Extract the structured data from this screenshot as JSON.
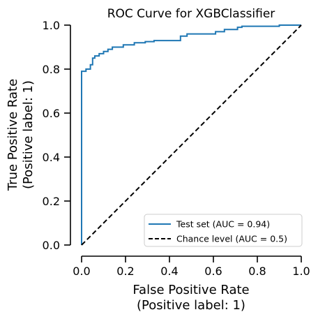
{
  "chart_data": {
    "type": "line",
    "title": "ROC Curve for XGBClassifier",
    "xlabel_line1": "False Positive Rate",
    "xlabel_line2": "(Positive label: 1)",
    "ylabel_line1": "True Positive Rate",
    "ylabel_line2": "(Positive label: 1)",
    "xlim": [
      0,
      1
    ],
    "ylim": [
      0,
      1
    ],
    "x_ticks": [
      "0.0",
      "0.2",
      "0.4",
      "0.6",
      "0.8",
      "1.0"
    ],
    "y_ticks": [
      "0.0",
      "0.2",
      "0.4",
      "0.6",
      "0.8",
      "1.0"
    ],
    "grid": false,
    "legend_position": "bottom-right",
    "series": [
      {
        "name": "Test set (AUC = 0.94)",
        "color": "#1f77b4",
        "style": "solid",
        "points": [
          [
            0.0,
            0.0
          ],
          [
            0.0,
            0.79
          ],
          [
            0.02,
            0.79
          ],
          [
            0.02,
            0.8
          ],
          [
            0.04,
            0.8
          ],
          [
            0.04,
            0.82
          ],
          [
            0.05,
            0.82
          ],
          [
            0.05,
            0.85
          ],
          [
            0.06,
            0.85
          ],
          [
            0.06,
            0.86
          ],
          [
            0.08,
            0.86
          ],
          [
            0.08,
            0.87
          ],
          [
            0.1,
            0.87
          ],
          [
            0.1,
            0.88
          ],
          [
            0.12,
            0.88
          ],
          [
            0.12,
            0.89
          ],
          [
            0.14,
            0.89
          ],
          [
            0.14,
            0.9
          ],
          [
            0.19,
            0.9
          ],
          [
            0.19,
            0.91
          ],
          [
            0.24,
            0.91
          ],
          [
            0.24,
            0.92
          ],
          [
            0.29,
            0.92
          ],
          [
            0.29,
            0.925
          ],
          [
            0.33,
            0.925
          ],
          [
            0.33,
            0.93
          ],
          [
            0.45,
            0.93
          ],
          [
            0.45,
            0.95
          ],
          [
            0.48,
            0.95
          ],
          [
            0.48,
            0.96
          ],
          [
            0.61,
            0.96
          ],
          [
            0.61,
            0.97
          ],
          [
            0.65,
            0.97
          ],
          [
            0.65,
            0.98
          ],
          [
            0.71,
            0.98
          ],
          [
            0.71,
            0.99
          ],
          [
            0.73,
            0.99
          ],
          [
            0.73,
            0.995
          ],
          [
            0.9,
            0.995
          ],
          [
            0.9,
            1.0
          ],
          [
            1.0,
            1.0
          ]
        ]
      },
      {
        "name": "Chance level (AUC = 0.5)",
        "color": "#000000",
        "style": "dashed",
        "points": [
          [
            0,
            0
          ],
          [
            1,
            1
          ]
        ]
      }
    ]
  }
}
